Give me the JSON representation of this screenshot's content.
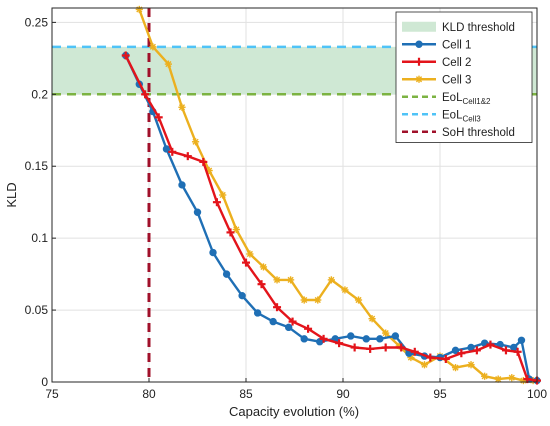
{
  "chart_data": {
    "type": "line",
    "title": "",
    "xlabel": "Capacity evolution (%)",
    "ylabel": "KLD",
    "xlim": [
      75,
      100
    ],
    "ylim": [
      0,
      0.26
    ],
    "xticks": [
      75,
      80,
      85,
      90,
      95,
      100
    ],
    "yticks": [
      0,
      0.05,
      0.1,
      0.15,
      0.2,
      0.25
    ],
    "xtick_labels": [
      "75",
      "80",
      "85",
      "90",
      "95",
      "100"
    ],
    "ytick_labels": [
      "0",
      "0.05",
      "0.1",
      "0.15",
      "0.2",
      "0.25"
    ],
    "grid": true,
    "legend_position": "top-right",
    "kld_threshold": {
      "name": "KLD threshold",
      "range": [
        0.2,
        0.233
      ],
      "color": "#cfe8d4"
    },
    "reference_lines": [
      {
        "name": "EoL",
        "subscript": "Cell1&2",
        "orientation": "horizontal",
        "value": 0.2,
        "color": "#7cb342",
        "dashed": true
      },
      {
        "name": "EoL",
        "subscript": "Cell3",
        "orientation": "horizontal",
        "value": 0.233,
        "color": "#4fc3f7",
        "dashed": true
      },
      {
        "name": "SoH threshold",
        "subscript": "",
        "orientation": "vertical",
        "value": 80,
        "color": "#a0102a",
        "dashed": true
      }
    ],
    "series": [
      {
        "name": "Cell 1",
        "color": "#1f6fb5",
        "marker": "circle",
        "x": [
          78.8,
          79.5,
          80.2,
          80.9,
          81.7,
          82.5,
          83.3,
          84.0,
          84.8,
          85.6,
          86.4,
          87.2,
          88.0,
          88.8,
          89.6,
          90.4,
          91.2,
          91.9,
          92.7,
          93.4,
          94.2,
          95.0,
          95.8,
          96.6,
          97.3,
          98.1,
          98.8,
          99.2,
          99.6,
          100.0
        ],
        "y": [
          0.227,
          0.207,
          0.188,
          0.162,
          0.137,
          0.118,
          0.09,
          0.075,
          0.06,
          0.048,
          0.042,
          0.038,
          0.03,
          0.028,
          0.03,
          0.032,
          0.03,
          0.03,
          0.032,
          0.02,
          0.018,
          0.017,
          0.022,
          0.024,
          0.027,
          0.026,
          0.024,
          0.029,
          0.002,
          0.001
        ]
      },
      {
        "name": "Cell 2",
        "color": "#e3141b",
        "marker": "plus",
        "x": [
          78.8,
          79.8,
          80.5,
          81.2,
          82.0,
          82.8,
          83.5,
          84.2,
          85.0,
          85.8,
          86.6,
          87.4,
          88.2,
          89.0,
          89.8,
          90.6,
          91.4,
          92.2,
          93.0,
          93.7,
          94.5,
          95.3,
          96.1,
          96.9,
          97.6,
          98.4,
          99.0,
          99.5,
          100.0
        ],
        "y": [
          0.227,
          0.2,
          0.184,
          0.16,
          0.157,
          0.153,
          0.125,
          0.104,
          0.083,
          0.068,
          0.052,
          0.042,
          0.037,
          0.03,
          0.027,
          0.024,
          0.023,
          0.024,
          0.024,
          0.021,
          0.017,
          0.016,
          0.02,
          0.022,
          0.026,
          0.022,
          0.021,
          0.002,
          0.001
        ]
      },
      {
        "name": "Cell 3",
        "color": "#ecb01f",
        "marker": "star",
        "x": [
          79.5,
          80.2,
          81.0,
          81.7,
          82.4,
          83.1,
          83.8,
          84.5,
          85.2,
          85.9,
          86.6,
          87.3,
          88.0,
          88.7,
          89.4,
          90.1,
          90.8,
          91.5,
          92.2,
          92.9,
          93.5,
          94.2,
          95.0,
          95.8,
          96.6,
          97.3,
          98.0,
          98.7,
          99.3,
          99.8
        ],
        "y": [
          0.259,
          0.233,
          0.221,
          0.191,
          0.167,
          0.147,
          0.13,
          0.106,
          0.089,
          0.08,
          0.071,
          0.071,
          0.057,
          0.057,
          0.071,
          0.064,
          0.057,
          0.044,
          0.034,
          0.025,
          0.017,
          0.012,
          0.018,
          0.01,
          0.012,
          0.004,
          0.002,
          0.003,
          0.001,
          0.001
        ]
      }
    ]
  }
}
